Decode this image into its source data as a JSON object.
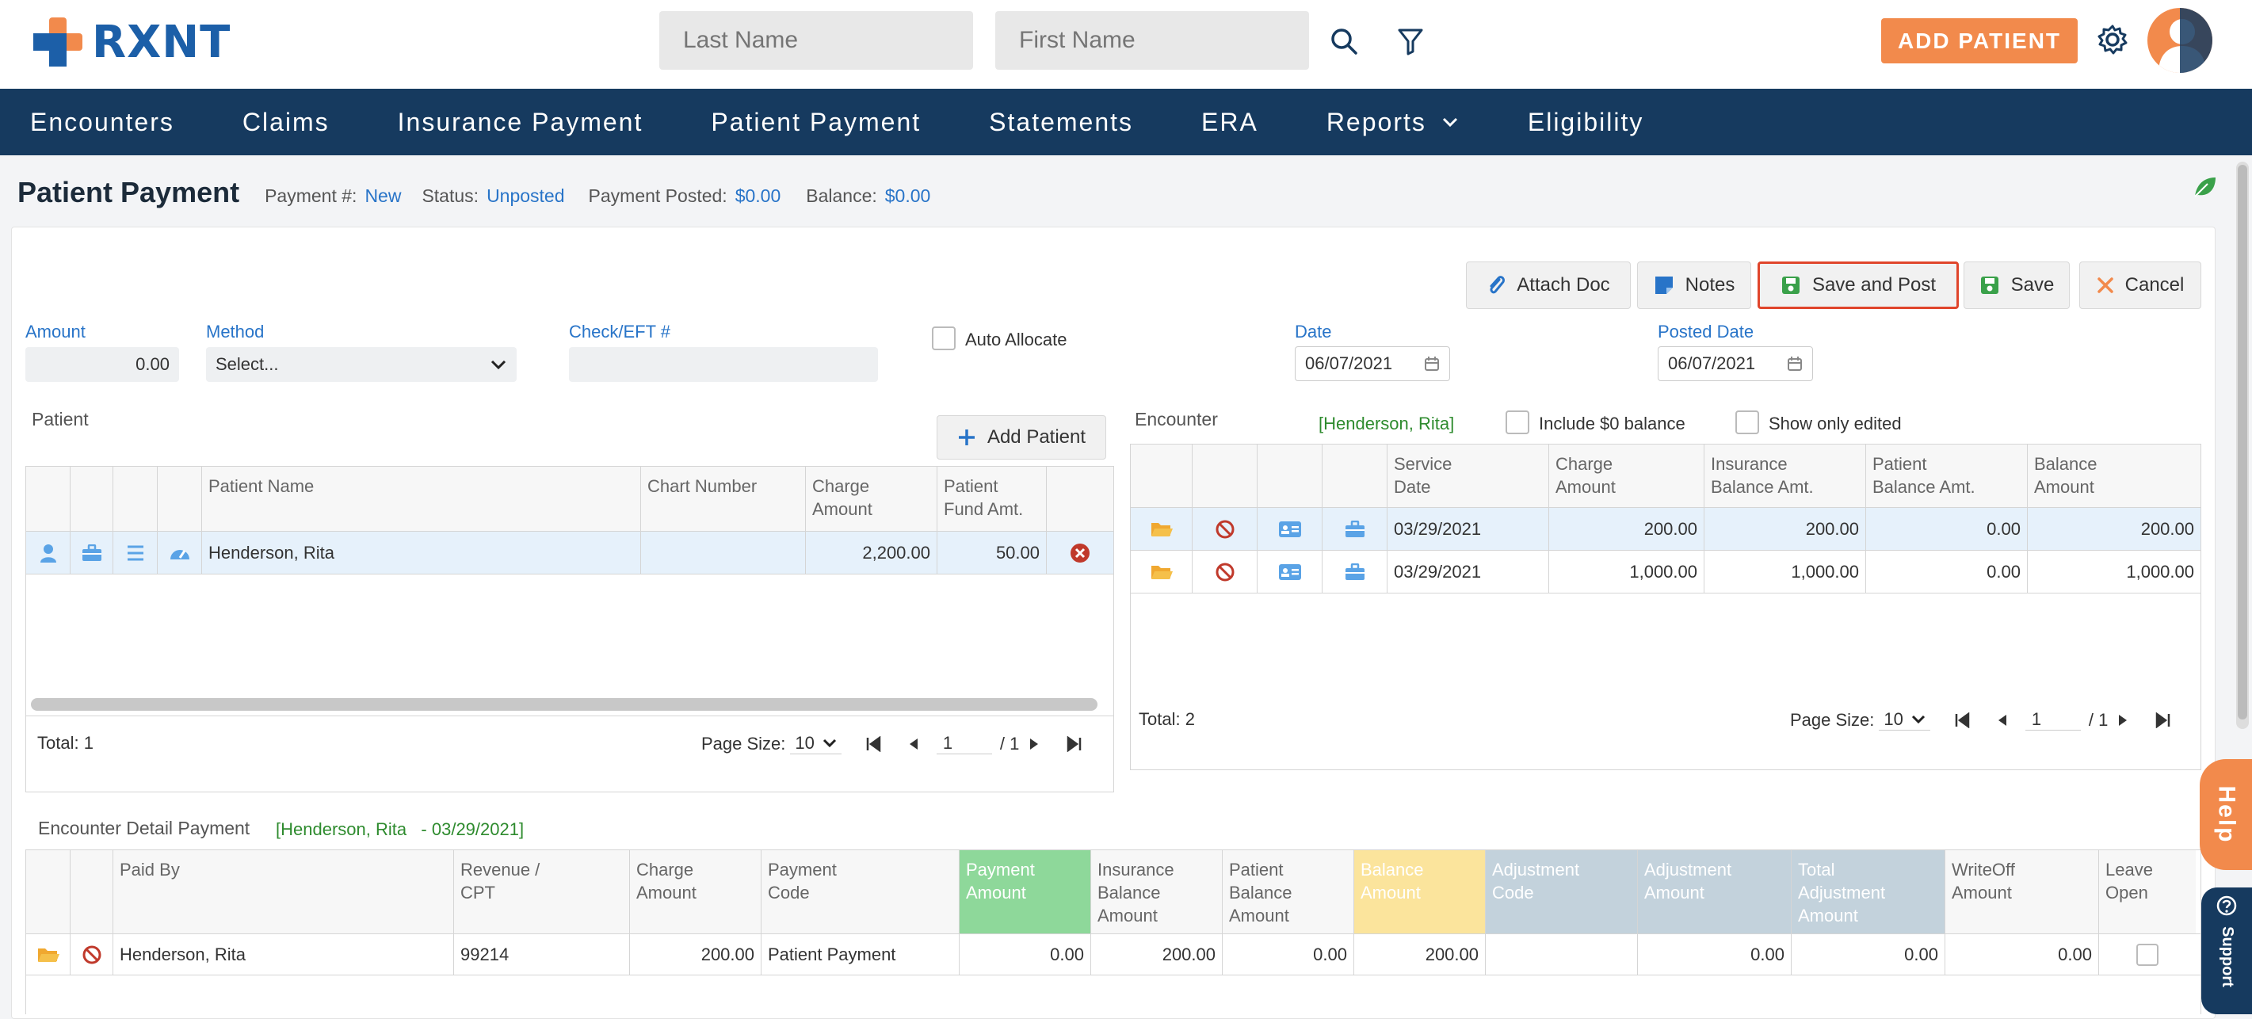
{
  "app": {
    "logo_text": "RXNT",
    "brand_orange": "#f28a4c",
    "brand_blue": "#163a5f"
  },
  "header": {
    "last_name_placeholder": "Last Name",
    "first_name_placeholder": "First Name",
    "search_icon": "search-icon",
    "filter_icon": "filter-icon",
    "add_patient_label": "ADD PATIENT",
    "settings_icon": "gear-icon"
  },
  "nav": {
    "items": [
      "Encounters",
      "Claims",
      "Insurance Payment",
      "Patient Payment",
      "Statements",
      "ERA",
      "Reports",
      "Eligibility"
    ]
  },
  "page": {
    "title": "Patient Payment",
    "payment_no_label": "Payment #:",
    "payment_no_value": "New",
    "status_label": "Status:",
    "status_value": "Unposted",
    "posted_label": "Payment Posted:",
    "posted_value": "$0.00",
    "balance_label": "Balance:",
    "balance_value": "$0.00"
  },
  "toolbar": {
    "attach_label": "Attach Doc",
    "notes_label": "Notes",
    "save_post_label": "Save and Post",
    "save_label": "Save",
    "cancel_label": "Cancel"
  },
  "form": {
    "amount_label": "Amount",
    "amount_value": "0.00",
    "method_label": "Method",
    "method_value": "Select...",
    "check_label": "Check/EFT #",
    "check_value": "",
    "auto_allocate_label": "Auto Allocate",
    "date_label": "Date",
    "date_value": "06/07/2021",
    "posted_date_label": "Posted Date",
    "posted_date_value": "06/07/2021"
  },
  "patient_grid": {
    "section_label": "Patient",
    "add_patient_label": "Add Patient",
    "headers": [
      "Patient Name",
      "Chart Number",
      "Charge\nAmount",
      "Patient\nFund Amt."
    ],
    "rows": [
      {
        "name": "Henderson, Rita",
        "chart": "",
        "charge": "2,200.00",
        "fund": "50.00"
      }
    ],
    "total": "Total: 1",
    "page_size_label": "Page Size:",
    "page_size": "10",
    "page": "1",
    "page_of": "/ 1"
  },
  "encounter_grid": {
    "section_label": "Encounter",
    "patient_tag": "[Henderson, Rita]",
    "include_zero_label": "Include $0 balance",
    "show_edited_label": "Show only edited",
    "headers": [
      "Service\nDate",
      "Charge\nAmount",
      "Insurance\nBalance Amt.",
      "Patient\nBalance Amt.",
      "Balance\nAmount"
    ],
    "rows": [
      {
        "date": "03/29/2021",
        "charge": "200.00",
        "ins": "200.00",
        "pat": "0.00",
        "bal": "200.00"
      },
      {
        "date": "03/29/2021",
        "charge": "1,000.00",
        "ins": "1,000.00",
        "pat": "0.00",
        "bal": "1,000.00"
      }
    ],
    "total": "Total: 2",
    "page_size_label": "Page Size:",
    "page_size": "10",
    "page": "1",
    "page_of": "/ 1"
  },
  "detail_grid": {
    "section_label": "Encounter Detail Payment",
    "tag": "[Henderson, Rita   - 03/29/2021]",
    "headers": [
      "Paid By",
      "Revenue /\nCPT",
      "Charge\nAmount",
      "Payment\nCode",
      "Payment\nAmount",
      "Insurance\nBalance\nAmount",
      "Patient\nBalance\nAmount",
      "Balance\nAmount",
      "Adjustment\nCode",
      "Adjustment\nAmount",
      "Total\nAdjustment\nAmount",
      "WriteOff\nAmount",
      "Leave\nOpen"
    ],
    "header_colors": {
      "payment": "#8ed89a",
      "balance": "#fbe49c",
      "adjustment": "#c3d2dc"
    },
    "rows": [
      {
        "paid_by": "Henderson, Rita",
        "cpt": "99214",
        "charge": "200.00",
        "code": "Patient Payment",
        "payment": "0.00",
        "ins_bal": "200.00",
        "pat_bal": "0.00",
        "bal": "200.00",
        "adj_code": "",
        "adj_amt": "0.00",
        "total_adj": "0.00",
        "writeoff": "0.00"
      }
    ]
  },
  "side": {
    "help_label": "Help",
    "support_label": "Support"
  }
}
